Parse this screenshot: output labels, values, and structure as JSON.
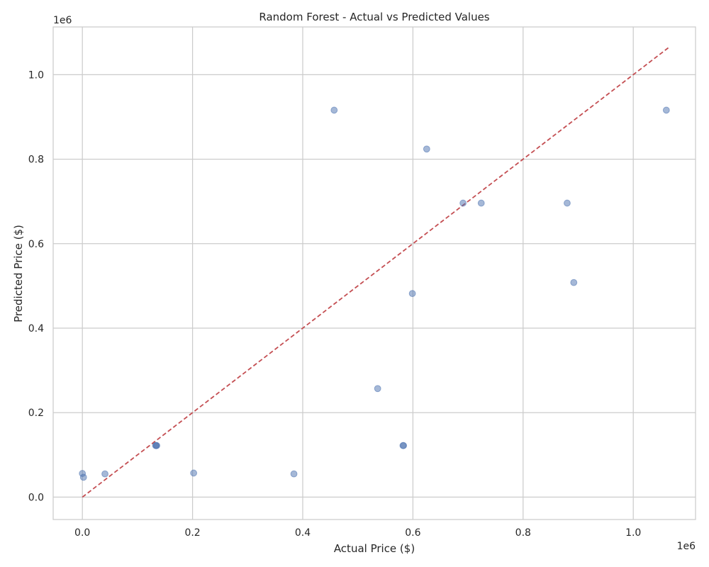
{
  "chart_data": {
    "type": "scatter",
    "title": "Random Forest - Actual vs Predicted Values",
    "xlabel": "Actual Price ($)",
    "ylabel": "Predicted Price ($)",
    "x_offset_label": "1e6",
    "y_offset_label": "1e6",
    "xlim": [
      -0.053,
      1.113
    ],
    "ylim": [
      -0.053,
      1.113
    ],
    "x_ticks": [
      "0.0",
      "0.2",
      "0.4",
      "0.6",
      "0.8",
      "1.0"
    ],
    "y_ticks": [
      "0.0",
      "0.2",
      "0.4",
      "0.6",
      "0.8",
      "1.0"
    ],
    "x_tick_values": [
      0.0,
      0.2,
      0.4,
      0.6,
      0.8,
      1.0
    ],
    "y_tick_values": [
      0.0,
      0.2,
      0.4,
      0.6,
      0.8,
      1.0
    ],
    "grid": true,
    "reference_line": {
      "x": [
        0.0,
        1.065
      ],
      "y": [
        0.0,
        1.065
      ],
      "style": "dashed",
      "color": "#c44e52"
    },
    "point_color": "#4c72b0",
    "points": [
      {
        "x": 0.0,
        "y": 0.056
      },
      {
        "x": 0.002,
        "y": 0.047
      },
      {
        "x": 0.041,
        "y": 0.055
      },
      {
        "x": 0.133,
        "y": 0.122
      },
      {
        "x": 0.134,
        "y": 0.122
      },
      {
        "x": 0.135,
        "y": 0.122
      },
      {
        "x": 0.202,
        "y": 0.057
      },
      {
        "x": 0.384,
        "y": 0.055
      },
      {
        "x": 0.457,
        "y": 0.916
      },
      {
        "x": 0.536,
        "y": 0.257
      },
      {
        "x": 0.582,
        "y": 0.122
      },
      {
        "x": 0.583,
        "y": 0.122
      },
      {
        "x": 0.599,
        "y": 0.482
      },
      {
        "x": 0.625,
        "y": 0.824
      },
      {
        "x": 0.691,
        "y": 0.696
      },
      {
        "x": 0.724,
        "y": 0.696
      },
      {
        "x": 0.88,
        "y": 0.696
      },
      {
        "x": 0.892,
        "y": 0.508
      },
      {
        "x": 1.06,
        "y": 0.916
      }
    ]
  }
}
